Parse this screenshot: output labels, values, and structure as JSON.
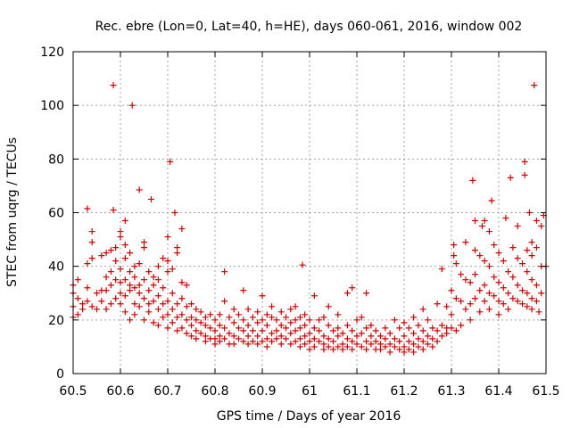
{
  "chart_data": {
    "type": "scatter",
    "title": "Rec. ebre (Lon=0, Lat=40, h=HE), days 060-061, 2016, window 002",
    "xlabel": "GPS time / Days of year 2016",
    "ylabel": "STEC from uqrg / TECUs",
    "xlim": [
      60.5,
      61.5
    ],
    "ylim": [
      0,
      120
    ],
    "xticks": [
      60.5,
      60.6,
      60.7,
      60.8,
      60.9,
      61,
      61.1,
      61.2,
      61.3,
      61.4,
      61.5
    ],
    "yticks": [
      0,
      20,
      40,
      60,
      80,
      100,
      120
    ],
    "grid": true,
    "marker": "+",
    "color": "#cc0000",
    "points": [
      [
        60.5,
        33
      ],
      [
        60.5,
        30
      ],
      [
        60.5,
        25
      ],
      [
        60.5,
        21
      ],
      [
        60.51,
        35
      ],
      [
        60.51,
        28
      ],
      [
        60.51,
        22
      ],
      [
        60.52,
        26
      ],
      [
        60.52,
        24
      ],
      [
        60.53,
        61.5
      ],
      [
        60.53,
        41
      ],
      [
        60.53,
        32
      ],
      [
        60.53,
        27
      ],
      [
        60.54,
        53
      ],
      [
        60.54,
        49
      ],
      [
        60.54,
        43
      ],
      [
        60.54,
        25
      ],
      [
        60.55,
        30
      ],
      [
        60.55,
        24
      ],
      [
        60.56,
        44
      ],
      [
        60.56,
        31
      ],
      [
        60.56,
        27
      ],
      [
        60.57,
        45
      ],
      [
        60.57,
        36
      ],
      [
        60.57,
        31
      ],
      [
        60.57,
        24
      ],
      [
        60.58,
        46
      ],
      [
        60.58,
        38
      ],
      [
        60.58,
        33
      ],
      [
        60.58,
        26
      ],
      [
        60.585,
        107.5
      ],
      [
        60.585,
        61
      ],
      [
        60.59,
        47
      ],
      [
        60.59,
        42
      ],
      [
        60.59,
        35
      ],
      [
        60.59,
        28
      ],
      [
        60.6,
        53
      ],
      [
        60.6,
        51
      ],
      [
        60.6,
        39
      ],
      [
        60.6,
        34
      ],
      [
        60.6,
        30
      ],
      [
        60.6,
        26
      ],
      [
        60.61,
        57
      ],
      [
        60.61,
        48
      ],
      [
        60.61,
        43
      ],
      [
        60.61,
        35
      ],
      [
        60.61,
        29
      ],
      [
        60.61,
        23
      ],
      [
        60.62,
        45
      ],
      [
        60.62,
        38
      ],
      [
        60.62,
        33
      ],
      [
        60.62,
        31
      ],
      [
        60.62,
        20
      ],
      [
        60.625,
        100
      ],
      [
        60.63,
        40
      ],
      [
        60.63,
        36
      ],
      [
        60.63,
        32
      ],
      [
        60.63,
        26
      ],
      [
        60.63,
        22
      ],
      [
        60.64,
        68.5
      ],
      [
        60.64,
        41
      ],
      [
        60.64,
        33
      ],
      [
        60.64,
        30
      ],
      [
        60.64,
        25
      ],
      [
        60.65,
        49
      ],
      [
        60.65,
        47
      ],
      [
        60.65,
        35
      ],
      [
        60.65,
        28
      ],
      [
        60.65,
        20
      ],
      [
        60.66,
        38
      ],
      [
        60.66,
        31
      ],
      [
        60.66,
        26
      ],
      [
        60.66,
        23
      ],
      [
        60.665,
        65
      ],
      [
        60.67,
        36
      ],
      [
        60.67,
        33
      ],
      [
        60.67,
        27
      ],
      [
        60.67,
        19
      ],
      [
        60.68,
        40
      ],
      [
        60.68,
        35
      ],
      [
        60.68,
        29
      ],
      [
        60.68,
        24
      ],
      [
        60.68,
        18
      ],
      [
        60.69,
        43
      ],
      [
        60.69,
        32
      ],
      [
        60.69,
        26
      ],
      [
        60.69,
        21
      ],
      [
        60.7,
        51
      ],
      [
        60.7,
        42
      ],
      [
        60.7,
        38
      ],
      [
        60.7,
        27
      ],
      [
        60.7,
        22
      ],
      [
        60.7,
        17
      ],
      [
        60.705,
        79
      ],
      [
        60.71,
        39
      ],
      [
        60.71,
        30
      ],
      [
        60.71,
        24
      ],
      [
        60.71,
        19
      ],
      [
        60.715,
        60
      ],
      [
        60.72,
        47
      ],
      [
        60.72,
        45
      ],
      [
        60.72,
        26
      ],
      [
        60.72,
        21
      ],
      [
        60.72,
        16
      ],
      [
        60.73,
        54
      ],
      [
        60.73,
        34
      ],
      [
        60.73,
        28
      ],
      [
        60.73,
        22
      ],
      [
        60.73,
        17
      ],
      [
        60.74,
        33
      ],
      [
        60.74,
        25
      ],
      [
        60.74,
        20
      ],
      [
        60.74,
        15
      ],
      [
        60.75,
        26
      ],
      [
        60.75,
        21
      ],
      [
        60.75,
        18
      ],
      [
        60.75,
        14
      ],
      [
        60.76,
        24
      ],
      [
        60.76,
        20
      ],
      [
        60.76,
        16
      ],
      [
        60.76,
        13
      ],
      [
        60.77,
        23
      ],
      [
        60.77,
        19
      ],
      [
        60.77,
        15
      ],
      [
        60.78,
        21
      ],
      [
        60.78,
        18
      ],
      [
        60.78,
        14
      ],
      [
        60.78,
        12
      ],
      [
        60.79,
        22
      ],
      [
        60.79,
        17
      ],
      [
        60.79,
        13
      ],
      [
        60.8,
        20
      ],
      [
        60.8,
        16
      ],
      [
        60.8,
        13
      ],
      [
        60.8,
        11
      ],
      [
        60.81,
        22
      ],
      [
        60.81,
        18
      ],
      [
        60.81,
        14
      ],
      [
        60.81,
        12
      ],
      [
        60.82,
        38
      ],
      [
        60.82,
        27
      ],
      [
        60.82,
        17
      ],
      [
        60.82,
        13
      ],
      [
        60.83,
        21
      ],
      [
        60.83,
        15
      ],
      [
        60.83,
        11
      ],
      [
        60.84,
        24
      ],
      [
        60.84,
        19
      ],
      [
        60.84,
        14
      ],
      [
        60.84,
        11
      ],
      [
        60.85,
        22
      ],
      [
        60.85,
        17
      ],
      [
        60.85,
        13
      ],
      [
        60.86,
        31
      ],
      [
        60.86,
        20
      ],
      [
        60.86,
        16
      ],
      [
        60.86,
        12
      ],
      [
        60.87,
        24
      ],
      [
        60.87,
        18
      ],
      [
        60.87,
        14
      ],
      [
        60.87,
        11
      ],
      [
        60.88,
        21
      ],
      [
        60.88,
        16
      ],
      [
        60.88,
        12
      ],
      [
        60.89,
        23
      ],
      [
        60.89,
        19
      ],
      [
        60.89,
        14
      ],
      [
        60.89,
        11
      ],
      [
        60.9,
        29
      ],
      [
        60.9,
        20
      ],
      [
        60.9,
        16
      ],
      [
        60.9,
        12
      ],
      [
        60.91,
        22
      ],
      [
        60.91,
        18
      ],
      [
        60.91,
        13
      ],
      [
        60.91,
        10
      ],
      [
        60.92,
        25
      ],
      [
        60.92,
        21
      ],
      [
        60.92,
        15
      ],
      [
        60.92,
        12
      ],
      [
        60.93,
        20
      ],
      [
        60.93,
        16
      ],
      [
        60.93,
        13
      ],
      [
        60.94,
        23
      ],
      [
        60.94,
        18
      ],
      [
        60.94,
        14
      ],
      [
        60.94,
        11
      ],
      [
        60.95,
        21
      ],
      [
        60.95,
        17
      ],
      [
        60.95,
        13
      ],
      [
        60.96,
        24
      ],
      [
        60.96,
        19
      ],
      [
        60.96,
        15
      ],
      [
        60.96,
        11
      ],
      [
        60.97,
        25
      ],
      [
        60.97,
        20
      ],
      [
        60.97,
        16
      ],
      [
        60.97,
        12
      ],
      [
        60.98,
        21
      ],
      [
        60.98,
        17
      ],
      [
        60.98,
        13
      ],
      [
        60.98,
        10
      ],
      [
        60.985,
        40.5
      ],
      [
        60.99,
        22
      ],
      [
        60.99,
        18
      ],
      [
        60.99,
        14
      ],
      [
        60.99,
        11
      ],
      [
        61.0,
        20
      ],
      [
        61.0,
        15
      ],
      [
        61.0,
        12
      ],
      [
        61.0,
        9
      ],
      [
        61.01,
        29
      ],
      [
        61.01,
        17
      ],
      [
        61.01,
        13
      ],
      [
        61.01,
        10
      ],
      [
        61.02,
        20
      ],
      [
        61.02,
        16
      ],
      [
        61.02,
        12
      ],
      [
        61.03,
        21
      ],
      [
        61.03,
        14
      ],
      [
        61.03,
        11
      ],
      [
        61.03,
        9
      ],
      [
        61.04,
        25
      ],
      [
        61.04,
        18
      ],
      [
        61.04,
        13
      ],
      [
        61.04,
        10
      ],
      [
        61.05,
        16
      ],
      [
        61.05,
        12
      ],
      [
        61.05,
        9
      ],
      [
        61.06,
        22
      ],
      [
        61.06,
        17
      ],
      [
        61.06,
        14
      ],
      [
        61.06,
        10
      ],
      [
        61.07,
        15
      ],
      [
        61.07,
        11
      ],
      [
        61.07,
        9
      ],
      [
        61.08,
        30
      ],
      [
        61.08,
        18
      ],
      [
        61.08,
        13
      ],
      [
        61.08,
        10
      ],
      [
        61.09,
        32
      ],
      [
        61.09,
        16
      ],
      [
        61.09,
        12
      ],
      [
        61.09,
        9
      ],
      [
        61.1,
        20
      ],
      [
        61.1,
        14
      ],
      [
        61.1,
        11
      ],
      [
        61.11,
        21
      ],
      [
        61.11,
        15
      ],
      [
        61.11,
        10
      ],
      [
        61.12,
        30
      ],
      [
        61.12,
        17
      ],
      [
        61.12,
        12
      ],
      [
        61.12,
        9
      ],
      [
        61.13,
        18
      ],
      [
        61.13,
        14
      ],
      [
        61.13,
        11
      ],
      [
        61.14,
        16
      ],
      [
        61.14,
        12
      ],
      [
        61.14,
        9
      ],
      [
        61.15,
        14
      ],
      [
        61.15,
        11
      ],
      [
        61.15,
        9
      ],
      [
        61.16,
        17
      ],
      [
        61.16,
        13
      ],
      [
        61.16,
        10
      ],
      [
        61.17,
        15
      ],
      [
        61.17,
        11
      ],
      [
        61.17,
        8
      ],
      [
        61.18,
        20
      ],
      [
        61.18,
        13
      ],
      [
        61.18,
        10
      ],
      [
        61.19,
        17
      ],
      [
        61.19,
        12
      ],
      [
        61.19,
        9
      ],
      [
        61.2,
        19
      ],
      [
        61.2,
        14
      ],
      [
        61.2,
        10
      ],
      [
        61.2,
        8
      ],
      [
        61.21,
        17
      ],
      [
        61.21,
        12
      ],
      [
        61.21,
        9
      ],
      [
        61.22,
        21
      ],
      [
        61.22,
        15
      ],
      [
        61.22,
        11
      ],
      [
        61.22,
        8
      ],
      [
        61.23,
        18
      ],
      [
        61.23,
        13
      ],
      [
        61.23,
        10
      ],
      [
        61.24,
        24
      ],
      [
        61.24,
        16
      ],
      [
        61.24,
        12
      ],
      [
        61.24,
        9
      ],
      [
        61.25,
        20
      ],
      [
        61.25,
        14
      ],
      [
        61.25,
        11
      ],
      [
        61.26,
        17
      ],
      [
        61.26,
        13
      ],
      [
        61.26,
        10
      ],
      [
        61.27,
        26
      ],
      [
        61.27,
        16
      ],
      [
        61.27,
        12
      ],
      [
        61.28,
        39
      ],
      [
        61.28,
        18
      ],
      [
        61.28,
        14
      ],
      [
        61.29,
        25
      ],
      [
        61.29,
        17
      ],
      [
        61.29,
        15
      ],
      [
        61.3,
        31
      ],
      [
        61.3,
        22
      ],
      [
        61.3,
        17
      ],
      [
        61.305,
        48
      ],
      [
        61.305,
        44
      ],
      [
        61.31,
        41
      ],
      [
        61.31,
        28
      ],
      [
        61.31,
        16
      ],
      [
        61.32,
        37
      ],
      [
        61.32,
        27
      ],
      [
        61.32,
        18
      ],
      [
        61.33,
        49
      ],
      [
        61.33,
        35
      ],
      [
        61.33,
        24
      ],
      [
        61.34,
        34
      ],
      [
        61.34,
        26
      ],
      [
        61.34,
        20
      ],
      [
        61.345,
        72
      ],
      [
        61.35,
        57
      ],
      [
        61.35,
        46
      ],
      [
        61.35,
        37
      ],
      [
        61.35,
        28
      ],
      [
        61.36,
        44
      ],
      [
        61.36,
        31
      ],
      [
        61.36,
        23
      ],
      [
        61.365,
        55
      ],
      [
        61.37,
        57
      ],
      [
        61.37,
        42
      ],
      [
        61.37,
        33
      ],
      [
        61.37,
        27
      ],
      [
        61.38,
        53
      ],
      [
        61.38,
        40
      ],
      [
        61.38,
        30
      ],
      [
        61.38,
        24
      ],
      [
        61.385,
        64.5
      ],
      [
        61.39,
        48
      ],
      [
        61.39,
        36
      ],
      [
        61.39,
        29
      ],
      [
        61.4,
        45
      ],
      [
        61.4,
        34
      ],
      [
        61.4,
        27
      ],
      [
        61.4,
        22
      ],
      [
        61.41,
        42
      ],
      [
        61.41,
        32
      ],
      [
        61.41,
        26
      ],
      [
        61.415,
        58
      ],
      [
        61.42,
        38
      ],
      [
        61.42,
        30
      ],
      [
        61.42,
        24
      ],
      [
        61.425,
        73
      ],
      [
        61.43,
        47
      ],
      [
        61.43,
        36
      ],
      [
        61.43,
        28
      ],
      [
        61.44,
        55
      ],
      [
        61.44,
        43
      ],
      [
        61.44,
        33
      ],
      [
        61.44,
        27
      ],
      [
        61.45,
        41
      ],
      [
        61.45,
        31
      ],
      [
        61.45,
        26
      ],
      [
        61.455,
        79
      ],
      [
        61.455,
        74
      ],
      [
        61.46,
        46
      ],
      [
        61.46,
        38
      ],
      [
        61.46,
        30
      ],
      [
        61.46,
        25
      ],
      [
        61.465,
        60
      ],
      [
        61.47,
        49
      ],
      [
        61.47,
        44
      ],
      [
        61.47,
        35
      ],
      [
        61.47,
        28
      ],
      [
        61.47,
        24
      ],
      [
        61.475,
        107.5
      ],
      [
        61.48,
        57
      ],
      [
        61.48,
        47
      ],
      [
        61.48,
        33
      ],
      [
        61.48,
        27
      ],
      [
        61.485,
        23
      ],
      [
        61.49,
        40
      ],
      [
        61.49,
        30
      ],
      [
        61.49,
        55
      ],
      [
        61.495,
        59
      ],
      [
        61.5,
        40
      ]
    ]
  }
}
